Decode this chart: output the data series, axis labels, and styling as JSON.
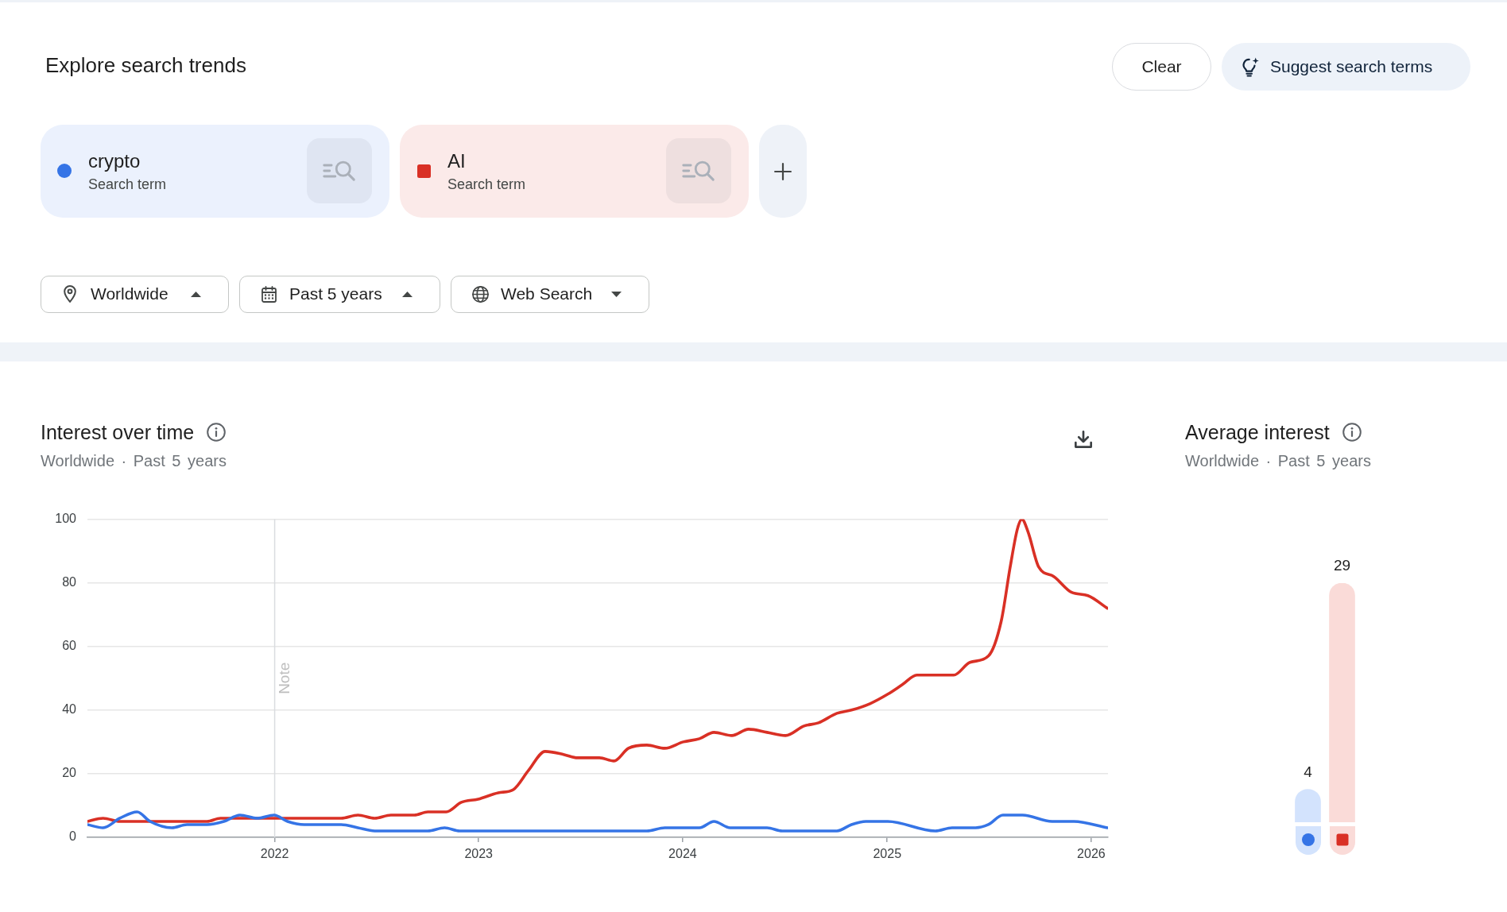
{
  "chart_data": [
    {
      "type": "line",
      "title": "Interest over time",
      "subtitle": "Worldwide · Past 5 years",
      "annotations": [
        "Explore search trends",
        "Clear",
        "Suggest search terms",
        "Search term",
        "Search term",
        "Worldwide",
        "Past 5 years",
        "Web Search"
      ],
      "xlim": [
        "2021-01-31",
        "2026-01-31"
      ],
      "xticks": [
        "2022",
        "2023",
        "2024",
        "2025",
        "2026"
      ],
      "ylim": [
        0,
        100
      ],
      "yticks": [
        0,
        20,
        40,
        60,
        80,
        100
      ],
      "grid": "y",
      "legend": "top left",
      "ref_lines": [
        {
          "axis": "x",
          "value": "2022-01-01",
          "label": "Note",
          "color": "#dadce0"
        }
      ],
      "series": [
        {
          "name": "crypto",
          "color": "#3574e6",
          "x": [
            "2021-01-31",
            "2021-02-28",
            "2021-03-30",
            "2021-04-30",
            "2021-05-23",
            "2021-07-01",
            "2021-07-28",
            "2021-09-02",
            "2021-10-02",
            "2021-10-31",
            "2021-12-01",
            "2021-12-31",
            "2022-01-24",
            "2022-02-23",
            "2022-04-30",
            "2022-05-30",
            "2022-06-29",
            "2022-10-02",
            "2022-11-01",
            "2022-11-28",
            "2023-03-01",
            "2023-07-01",
            "2023-10-29",
            "2023-11-30",
            "2024-01-31",
            "2024-02-26",
            "2024-03-26",
            "2024-05-31",
            "2024-06-27",
            "2024-10-03",
            "2024-10-29",
            "2024-11-24",
            "2025-01-02",
            "2025-03-28",
            "2025-04-27",
            "2025-06-08",
            "2025-07-01",
            "2025-07-27",
            "2025-08-31",
            "2025-10-23",
            "2025-12-01",
            "2026-01-30"
          ],
          "values": [
            4,
            3,
            6,
            8,
            5,
            3,
            4,
            4,
            5,
            7,
            6,
            7,
            5,
            4,
            4,
            3,
            2,
            2,
            3,
            2,
            2,
            2,
            2,
            3,
            3,
            5,
            3,
            3,
            2,
            2,
            4,
            5,
            5,
            2,
            3,
            3,
            4,
            7,
            7,
            5,
            5,
            3
          ]
        },
        {
          "name": "AI",
          "color": "#d93025",
          "x": [
            "2021-01-31",
            "2021-02-28",
            "2021-03-30",
            "2021-09-02",
            "2021-09-26",
            "2022-04-30",
            "2022-05-30",
            "2022-06-29",
            "2022-07-28",
            "2022-09-08",
            "2022-10-02",
            "2022-11-04",
            "2022-12-01",
            "2022-12-31",
            "2023-02-05",
            "2023-03-04",
            "2023-03-31",
            "2023-04-30",
            "2023-06-03",
            "2023-06-27",
            "2023-08-05",
            "2023-08-31",
            "2023-09-26",
            "2023-10-29",
            "2023-11-30",
            "2024-01-02",
            "2024-01-31",
            "2024-02-26",
            "2024-03-29",
            "2024-04-28",
            "2024-05-31",
            "2024-07-03",
            "2024-08-05",
            "2024-08-31",
            "2024-10-03",
            "2024-10-29",
            "2024-12-01",
            "2025-01-02",
            "2025-01-28",
            "2025-02-23",
            "2025-04-30",
            "2025-05-29",
            "2025-07-01",
            "2025-07-24",
            "2025-08-09",
            "2025-08-22",
            "2025-08-30",
            "2025-09-10",
            "2025-09-29",
            "2025-10-26",
            "2025-11-27",
            "2025-12-26",
            "2026-01-30"
          ],
          "values": [
            5,
            6,
            5,
            5,
            6,
            6,
            7,
            6,
            7,
            7,
            8,
            8,
            11,
            12,
            14,
            15,
            21,
            27,
            26,
            25,
            25,
            24,
            28,
            29,
            28,
            30,
            31,
            33,
            32,
            34,
            33,
            32,
            35,
            36,
            39,
            40,
            42,
            45,
            48,
            51,
            51,
            55,
            57,
            68,
            85,
            97,
            100,
            96,
            85,
            82,
            77,
            76,
            72
          ]
        }
      ]
    },
    {
      "type": "bar",
      "title": "Average interest",
      "subtitle": "Worldwide · Past 5 years",
      "categories": [
        null,
        null
      ],
      "values": [
        4,
        29
      ],
      "colors": [
        "#d3e3fd",
        "#fadbd8"
      ],
      "data_labels": true
    }
  ]
}
